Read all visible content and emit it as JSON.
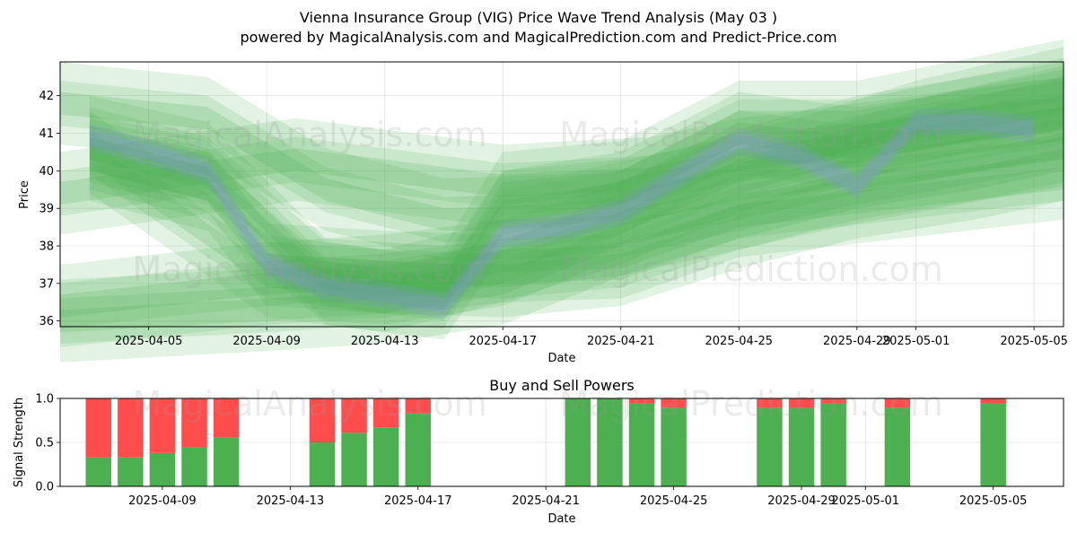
{
  "title_line1": "Vienna Insurance Group (VIG) Price Wave Trend Analysis (May 03 )",
  "title_line2": "powered by MagicalAnalysis.com and MagicalPrediction.com and Predict-Price.com",
  "watermarks": [
    "MagicalAnalysis.com",
    "MagicalPrediction.com"
  ],
  "colors": {
    "band_green": "#4caf50",
    "band_blue": "#8c8cf0",
    "buy": "#4caf50",
    "sell": "#ff4d4d"
  },
  "chart_data": [
    {
      "type": "area",
      "title": "",
      "xlabel": "Date",
      "ylabel": "Price",
      "x_range": [
        "2025-04-02",
        "2025-05-06"
      ],
      "ylim": [
        35.85,
        42.9
      ],
      "grid": true,
      "x_ticks": [
        "2025-04-05",
        "2025-04-09",
        "2025-04-13",
        "2025-04-17",
        "2025-04-21",
        "2025-04-25",
        "2025-04-29",
        "2025-05-01",
        "2025-05-05"
      ],
      "y_ticks": [
        36,
        37,
        38,
        39,
        40,
        41,
        42
      ],
      "price_line": {
        "x": [
          "2025-04-03",
          "2025-04-05",
          "2025-04-07",
          "2025-04-09",
          "2025-04-11",
          "2025-04-13",
          "2025-04-15",
          "2025-04-17",
          "2025-04-19",
          "2025-04-21",
          "2025-04-23",
          "2025-04-25",
          "2025-04-27",
          "2025-04-29",
          "2025-05-01",
          "2025-05-03",
          "2025-05-05"
        ],
        "y": [
          40.9,
          40.5,
          40.0,
          37.5,
          36.9,
          36.7,
          36.4,
          38.3,
          38.5,
          38.9,
          39.9,
          40.8,
          40.4,
          39.6,
          41.3,
          41.3,
          41.1
        ]
      },
      "series": [
        {
          "x": [
            "2025-04-03",
            "2025-04-07",
            "2025-04-09",
            "2025-04-13",
            "2025-04-17",
            "2025-04-21",
            "2025-04-25",
            "2025-04-29",
            "2025-05-03",
            "2025-05-06"
          ],
          "y": [
            40.3,
            39.5,
            37.5,
            37.3,
            37.2,
            37.5,
            38.5,
            39.3,
            39.8,
            40.3
          ]
        },
        {
          "x": [
            "2025-04-03",
            "2025-04-07",
            "2025-04-11",
            "2025-04-15",
            "2025-04-17",
            "2025-04-21",
            "2025-04-25",
            "2025-04-29",
            "2025-05-06"
          ],
          "y": [
            40.6,
            39.8,
            37.0,
            36.6,
            38.9,
            39.4,
            41.0,
            40.6,
            41.4
          ]
        },
        {
          "x": [
            "2025-04-03",
            "2025-04-07",
            "2025-04-11",
            "2025-04-15",
            "2025-04-17",
            "2025-04-21",
            "2025-04-25",
            "2025-04-29",
            "2025-05-06"
          ],
          "y": [
            40.9,
            40.2,
            37.1,
            36.9,
            39.4,
            39.7,
            41.3,
            41.3,
            42.4
          ]
        },
        {
          "x": [
            "2025-04-03",
            "2025-04-09",
            "2025-04-13",
            "2025-04-17",
            "2025-04-21",
            "2025-04-25",
            "2025-04-29",
            "2025-05-06"
          ],
          "y": [
            40.5,
            37.2,
            36.8,
            37.6,
            38.6,
            40.0,
            40.9,
            41.8
          ]
        },
        {
          "x": [
            "2025-04-02",
            "2025-04-07",
            "2025-04-11",
            "2025-04-15",
            "2025-04-19",
            "2025-04-23",
            "2025-04-27",
            "2025-05-01",
            "2025-05-06"
          ],
          "y": [
            41.8,
            41.4,
            39.5,
            38.7,
            38.8,
            39.5,
            40.3,
            41.3,
            42.2
          ]
        },
        {
          "x": [
            "2025-04-02",
            "2025-04-10",
            "2025-04-17",
            "2025-04-22",
            "2025-04-25",
            "2025-05-06"
          ],
          "y": [
            39.4,
            40.3,
            39.6,
            39.8,
            40.3,
            41.4
          ]
        },
        {
          "x": [
            "2025-04-02",
            "2025-04-09",
            "2025-04-13",
            "2025-04-17",
            "2025-04-21",
            "2025-04-25",
            "2025-05-06"
          ],
          "y": [
            36.4,
            37.0,
            37.2,
            37.6,
            37.7,
            38.8,
            39.8
          ]
        },
        {
          "x": [
            "2025-04-02",
            "2025-04-09",
            "2025-04-13",
            "2025-04-17",
            "2025-04-21",
            "2025-04-25",
            "2025-04-29",
            "2025-05-06"
          ],
          "y": [
            36.0,
            36.3,
            36.5,
            37.0,
            38.3,
            39.0,
            39.7,
            40.7
          ]
        }
      ]
    },
    {
      "type": "bar",
      "title": "Buy and Sell Powers",
      "xlabel": "Date",
      "ylabel": "Signal Strength",
      "ylim": [
        0,
        1
      ],
      "y_ticks": [
        "0.0",
        "0.5",
        "1.0"
      ],
      "x_range": [
        "2025-04-05.8",
        "2025-05-07.2"
      ],
      "x_ticks": [
        "2025-04-09",
        "2025-04-13",
        "2025-04-17",
        "2025-04-21",
        "2025-04-25",
        "2025-04-29",
        "2025-05-01",
        "2025-05-05"
      ],
      "categories": [
        "2025-04-07",
        "2025-04-08",
        "2025-04-09",
        "2025-04-10",
        "2025-04-11",
        "2025-04-14",
        "2025-04-15",
        "2025-04-16",
        "2025-04-17",
        "2025-04-22",
        "2025-04-23",
        "2025-04-24",
        "2025-04-25",
        "2025-04-28",
        "2025-04-29",
        "2025-04-30",
        "2025-05-02",
        "2025-05-05"
      ],
      "series": [
        {
          "name": "buy",
          "values": [
            0.33,
            0.33,
            0.38,
            0.44,
            0.56,
            0.5,
            0.61,
            0.67,
            0.83,
            1.0,
            1.0,
            0.94,
            0.89,
            0.89,
            0.89,
            0.94,
            0.89,
            0.94
          ]
        },
        {
          "name": "sell",
          "values": [
            0.67,
            0.67,
            0.62,
            0.56,
            0.44,
            0.5,
            0.39,
            0.33,
            0.17,
            0.0,
            0.0,
            0.06,
            0.11,
            0.11,
            0.11,
            0.06,
            0.11,
            0.06
          ]
        }
      ]
    }
  ]
}
